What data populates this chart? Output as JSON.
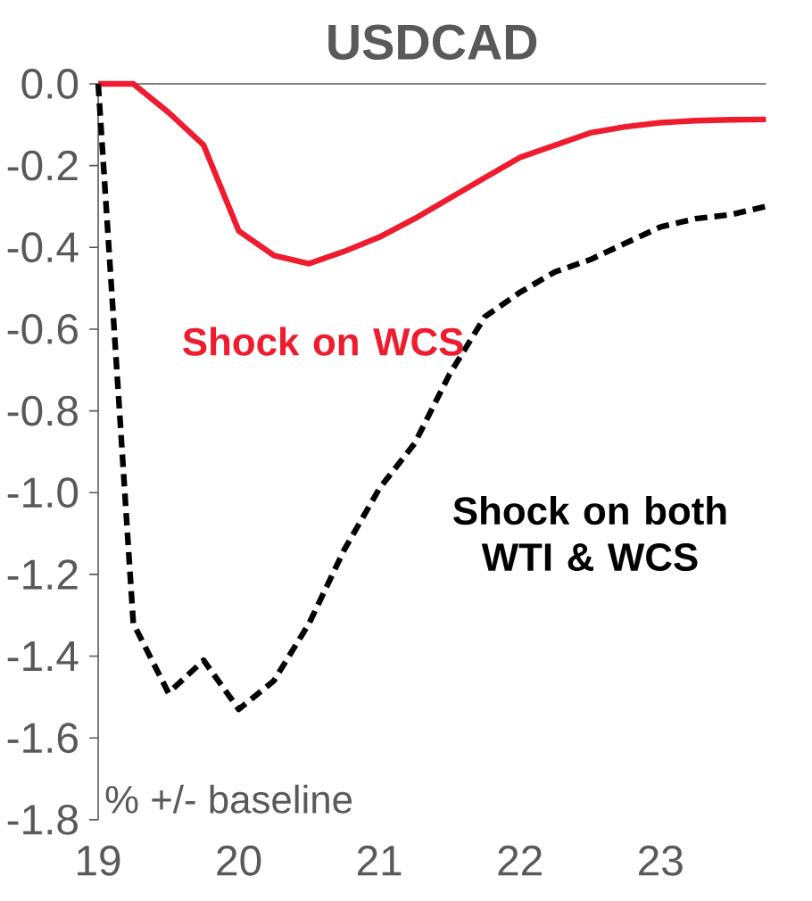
{
  "chart_data": {
    "type": "line",
    "title": "USDCAD",
    "x": [
      19,
      19.25,
      19.5,
      19.75,
      20,
      20.25,
      20.5,
      20.75,
      21,
      21.25,
      21.5,
      21.75,
      22,
      22.25,
      22.5,
      22.75,
      23,
      23.25,
      23.5,
      23.75
    ],
    "series": [
      {
        "name": "Shock on WCS",
        "color": "#ee1c2e",
        "line_style": "solid",
        "values": [
          0,
          0,
          -0.07,
          -0.15,
          -0.36,
          -0.42,
          -0.44,
          -0.41,
          -0.375,
          -0.33,
          -0.28,
          -0.23,
          -0.18,
          -0.15,
          -0.12,
          -0.105,
          -0.095,
          -0.09,
          -0.088,
          -0.087
        ]
      },
      {
        "name": "Shock on both WTI & WCS",
        "color": "#000000",
        "line_style": "dashed",
        "values": [
          0,
          -1.32,
          -1.49,
          -1.41,
          -1.53,
          -1.46,
          -1.32,
          -1.14,
          -0.99,
          -0.88,
          -0.71,
          -0.57,
          -0.51,
          -0.46,
          -0.43,
          -0.39,
          -0.35,
          -0.33,
          -0.32,
          -0.3
        ]
      }
    ],
    "xlim": [
      19,
      23.75
    ],
    "xticks": [
      19,
      20,
      21,
      22,
      23
    ],
    "ylim": [
      -1.8,
      0
    ],
    "yticks": [
      {
        "value": -1.8,
        "label": "-1.8"
      },
      {
        "value": -1.6,
        "label": "-1.6"
      },
      {
        "value": -1.4,
        "label": "-1.4"
      },
      {
        "value": -1.2,
        "label": "-1.2"
      },
      {
        "value": -1.0,
        "label": "-1.0"
      },
      {
        "value": -0.8,
        "label": "-0.8"
      },
      {
        "value": -0.6,
        "label": "-0.6"
      },
      {
        "value": -0.4,
        "label": "-0.4"
      },
      {
        "value": -0.2,
        "label": "-0.2"
      },
      {
        "value": 0,
        "label": "0.0"
      }
    ],
    "grid": false,
    "marker": "none",
    "annotations": [
      "% +/- baseline"
    ]
  }
}
